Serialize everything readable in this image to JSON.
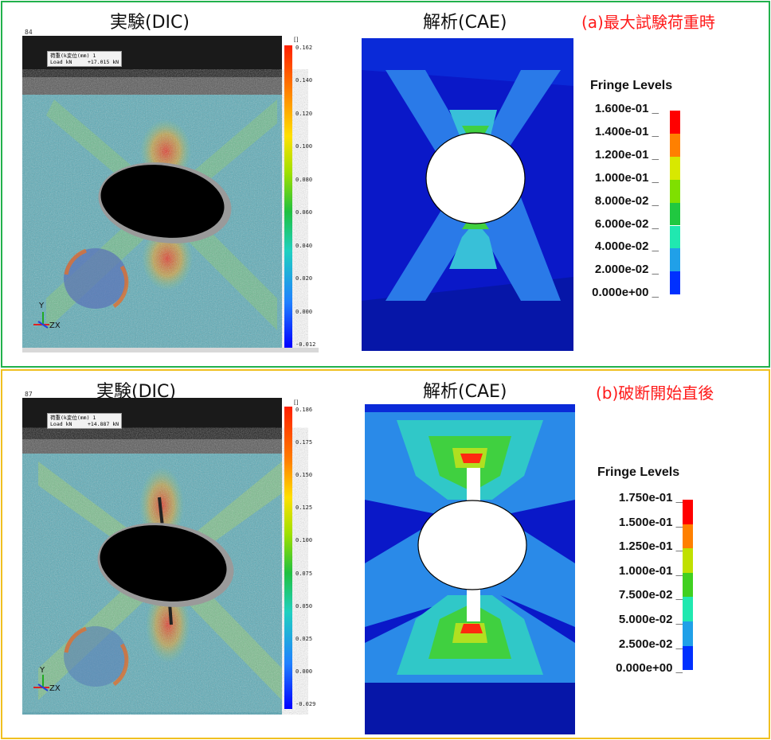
{
  "panels": [
    {
      "id": "a",
      "caption": "(a)最大試験荷重時",
      "dic_title": "実験(DIC)",
      "cae_title": "解析(CAE)",
      "frame_number": "84",
      "load_box_line1": "荷重(k変位(mm) 1",
      "load_box_line2": "Load kN     +17.015 kN",
      "dic_colorbar_unit": "[]",
      "dic_colorbar_ticks": [
        "0.162",
        "0.140",
        "0.120",
        "0.100",
        "0.080",
        "0.060",
        "0.040",
        "0.020",
        "0.000",
        "-0.012"
      ],
      "fringe_title": "Fringe Levels",
      "fringe_labels": [
        "1.600e-01",
        "1.400e-01",
        "1.200e-01",
        "1.000e-01",
        "8.000e-02",
        "6.000e-02",
        "4.000e-02",
        "2.000e-02",
        "0.000e+00"
      ],
      "fringe_colors": [
        "#ff0000",
        "#ff8000",
        "#d8e800",
        "#7fe000",
        "#20c840",
        "#20e8b0",
        "#20a0e8",
        "#0030ff"
      ],
      "axis_labels": [
        "Y",
        "Z",
        "X"
      ]
    },
    {
      "id": "b",
      "caption": "(b)破断開始直後",
      "dic_title": "実験(DIC)",
      "cae_title": "解析(CAE)",
      "frame_number": "87",
      "load_box_line1": "荷重(k変位(mm) 1",
      "load_box_line2": "Load kN     +14.887 kN",
      "dic_colorbar_unit": "[]",
      "dic_colorbar_ticks": [
        "0.186",
        "0.175",
        "0.150",
        "0.125",
        "0.100",
        "0.075",
        "0.050",
        "0.025",
        "0.000",
        "-0.029"
      ],
      "fringe_title": "Fringe Levels",
      "fringe_labels": [
        "1.750e-01",
        "1.500e-01",
        "1.250e-01",
        "1.000e-01",
        "7.500e-02",
        "5.000e-02",
        "2.500e-02",
        "0.000e+00"
      ],
      "fringe_colors": [
        "#ff0000",
        "#ff8000",
        "#c0e000",
        "#40d020",
        "#20e8b0",
        "#20a0e8",
        "#0030ff"
      ],
      "axis_labels": [
        "Y",
        "Z",
        "X"
      ]
    }
  ]
}
